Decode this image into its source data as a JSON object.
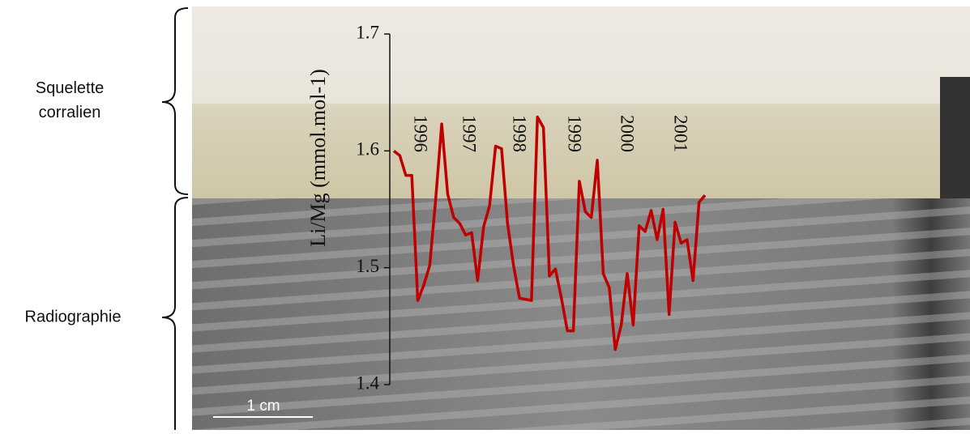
{
  "chart_data": {
    "type": "line",
    "ylabel": "Li/Mg (mmol.mol-1)",
    "annotations": [
      "1996",
      "1997",
      "1998",
      "1999",
      "2000",
      "2001"
    ],
    "side_labels": [
      "Squelette corralien",
      "Radiographie"
    ],
    "scale_label": "1 cm",
    "ylim": [
      1.4,
      1.7
    ],
    "yticks": [
      1.4,
      1.5,
      1.6,
      1.7
    ],
    "color": "#c00000",
    "values": [
      1.6,
      1.596,
      1.579,
      1.579,
      1.472,
      1.485,
      1.502,
      1.559,
      1.623,
      1.563,
      1.543,
      1.538,
      1.528,
      1.53,
      1.489,
      1.535,
      1.553,
      1.604,
      1.602,
      1.538,
      1.502,
      1.474,
      1.473,
      1.472,
      1.629,
      1.62,
      1.493,
      1.499,
      1.474,
      1.446,
      1.446,
      1.574,
      1.548,
      1.543,
      1.592,
      1.495,
      1.483,
      1.43,
      1.451,
      1.495,
      1.451,
      1.536,
      1.531,
      1.549,
      1.524,
      1.55,
      1.46,
      1.539,
      1.521,
      1.524,
      1.489,
      1.556,
      1.562
    ]
  }
}
